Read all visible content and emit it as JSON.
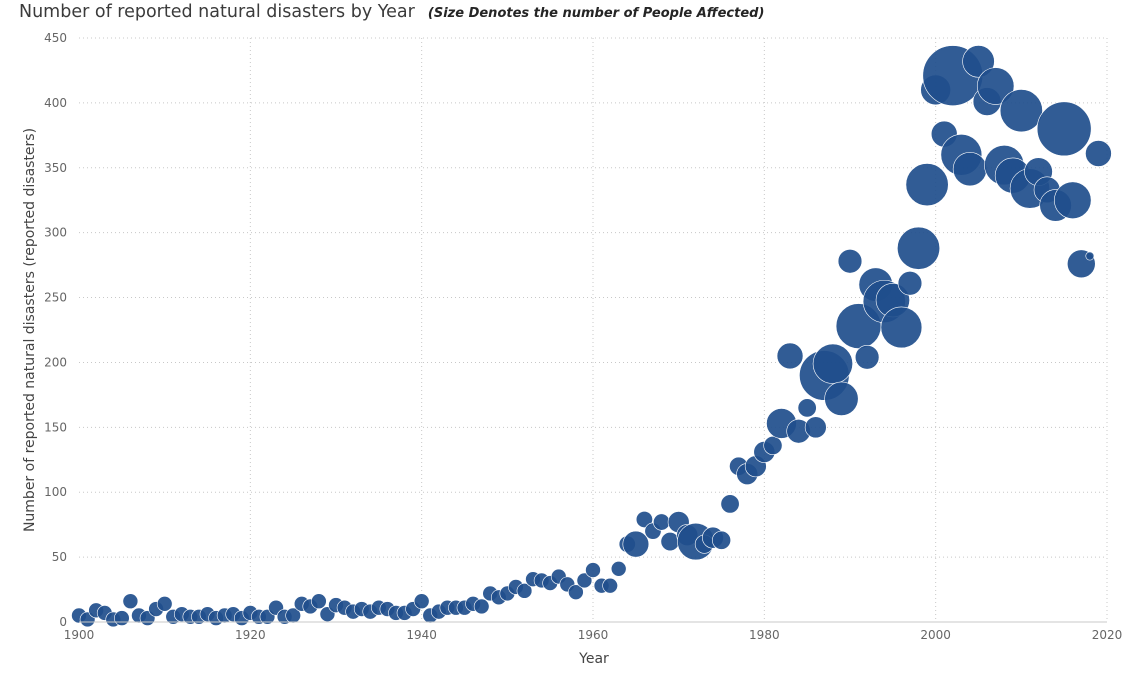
{
  "chart_data": {
    "type": "scatter",
    "title": "Number of reported natural disasters by Year",
    "subtitle": "(Size Denotes the number of People Affected)",
    "xlabel": "Year",
    "ylabel": "Number of reported natural disasters (reported disasters)",
    "xlim": [
      1900,
      2020
    ],
    "ylim": [
      0,
      450
    ],
    "x_ticks": [
      "1900",
      "1920",
      "1940",
      "1960",
      "1980",
      "2000",
      "2020"
    ],
    "y_ticks": [
      "0",
      "50",
      "100",
      "150",
      "200",
      "250",
      "300",
      "350",
      "400",
      "450"
    ],
    "grid": true,
    "marker_color": "#1F4E8C",
    "size_encodes": "number of people affected (relative bubble size)",
    "points": [
      {
        "x": 1900,
        "y": 5,
        "size": 1
      },
      {
        "x": 1901,
        "y": 2,
        "size": 1
      },
      {
        "x": 1902,
        "y": 9,
        "size": 1
      },
      {
        "x": 1903,
        "y": 7,
        "size": 1
      },
      {
        "x": 1904,
        "y": 2,
        "size": 1
      },
      {
        "x": 1905,
        "y": 3,
        "size": 1
      },
      {
        "x": 1906,
        "y": 16,
        "size": 1
      },
      {
        "x": 1907,
        "y": 5,
        "size": 1
      },
      {
        "x": 1908,
        "y": 3,
        "size": 1
      },
      {
        "x": 1909,
        "y": 10,
        "size": 1
      },
      {
        "x": 1910,
        "y": 14,
        "size": 1
      },
      {
        "x": 1911,
        "y": 4,
        "size": 1
      },
      {
        "x": 1912,
        "y": 6,
        "size": 1
      },
      {
        "x": 1913,
        "y": 4,
        "size": 1
      },
      {
        "x": 1914,
        "y": 4,
        "size": 1
      },
      {
        "x": 1915,
        "y": 6,
        "size": 1
      },
      {
        "x": 1916,
        "y": 3,
        "size": 1
      },
      {
        "x": 1917,
        "y": 5,
        "size": 1
      },
      {
        "x": 1918,
        "y": 6,
        "size": 1
      },
      {
        "x": 1919,
        "y": 3,
        "size": 1
      },
      {
        "x": 1920,
        "y": 7,
        "size": 1
      },
      {
        "x": 1921,
        "y": 4,
        "size": 1
      },
      {
        "x": 1922,
        "y": 4,
        "size": 1
      },
      {
        "x": 1923,
        "y": 11,
        "size": 1
      },
      {
        "x": 1924,
        "y": 4,
        "size": 1
      },
      {
        "x": 1925,
        "y": 5,
        "size": 1
      },
      {
        "x": 1926,
        "y": 14,
        "size": 1
      },
      {
        "x": 1927,
        "y": 12,
        "size": 1
      },
      {
        "x": 1928,
        "y": 16,
        "size": 1
      },
      {
        "x": 1929,
        "y": 6,
        "size": 1
      },
      {
        "x": 1930,
        "y": 13,
        "size": 1
      },
      {
        "x": 1931,
        "y": 11,
        "size": 1
      },
      {
        "x": 1932,
        "y": 8,
        "size": 1
      },
      {
        "x": 1933,
        "y": 10,
        "size": 1
      },
      {
        "x": 1934,
        "y": 8,
        "size": 1
      },
      {
        "x": 1935,
        "y": 11,
        "size": 1
      },
      {
        "x": 1936,
        "y": 10,
        "size": 1
      },
      {
        "x": 1937,
        "y": 7,
        "size": 1
      },
      {
        "x": 1938,
        "y": 7,
        "size": 1
      },
      {
        "x": 1939,
        "y": 10,
        "size": 1
      },
      {
        "x": 1940,
        "y": 16,
        "size": 1
      },
      {
        "x": 1941,
        "y": 5,
        "size": 1
      },
      {
        "x": 1942,
        "y": 8,
        "size": 1
      },
      {
        "x": 1943,
        "y": 11,
        "size": 1
      },
      {
        "x": 1944,
        "y": 11,
        "size": 1
      },
      {
        "x": 1945,
        "y": 11,
        "size": 1
      },
      {
        "x": 1946,
        "y": 14,
        "size": 1
      },
      {
        "x": 1947,
        "y": 12,
        "size": 1
      },
      {
        "x": 1948,
        "y": 22,
        "size": 1
      },
      {
        "x": 1949,
        "y": 19,
        "size": 1
      },
      {
        "x": 1950,
        "y": 22,
        "size": 1
      },
      {
        "x": 1951,
        "y": 27,
        "size": 1
      },
      {
        "x": 1952,
        "y": 24,
        "size": 1
      },
      {
        "x": 1953,
        "y": 33,
        "size": 1
      },
      {
        "x": 1954,
        "y": 32,
        "size": 1
      },
      {
        "x": 1955,
        "y": 30,
        "size": 1
      },
      {
        "x": 1956,
        "y": 35,
        "size": 1
      },
      {
        "x": 1957,
        "y": 29,
        "size": 1
      },
      {
        "x": 1958,
        "y": 23,
        "size": 1
      },
      {
        "x": 1959,
        "y": 32,
        "size": 1
      },
      {
        "x": 1960,
        "y": 40,
        "size": 1
      },
      {
        "x": 1961,
        "y": 28,
        "size": 1
      },
      {
        "x": 1962,
        "y": 28,
        "size": 1
      },
      {
        "x": 1963,
        "y": 41,
        "size": 1
      },
      {
        "x": 1964,
        "y": 60,
        "size": 1.2
      },
      {
        "x": 1965,
        "y": 60,
        "size": 3
      },
      {
        "x": 1966,
        "y": 79,
        "size": 1.2
      },
      {
        "x": 1967,
        "y": 70,
        "size": 1.2
      },
      {
        "x": 1968,
        "y": 77,
        "size": 1.2
      },
      {
        "x": 1969,
        "y": 62,
        "size": 1.5
      },
      {
        "x": 1970,
        "y": 77,
        "size": 2
      },
      {
        "x": 1971,
        "y": 67,
        "size": 2
      },
      {
        "x": 1972,
        "y": 62,
        "size": 6
      },
      {
        "x": 1973,
        "y": 60,
        "size": 1.5
      },
      {
        "x": 1974,
        "y": 65,
        "size": 2
      },
      {
        "x": 1975,
        "y": 63,
        "size": 1.5
      },
      {
        "x": 1976,
        "y": 91,
        "size": 1.5
      },
      {
        "x": 1977,
        "y": 120,
        "size": 1.5
      },
      {
        "x": 1978,
        "y": 114,
        "size": 2
      },
      {
        "x": 1979,
        "y": 120,
        "size": 2
      },
      {
        "x": 1980,
        "y": 131,
        "size": 2
      },
      {
        "x": 1981,
        "y": 136,
        "size": 1.5
      },
      {
        "x": 1982,
        "y": 153,
        "size": 4
      },
      {
        "x": 1983,
        "y": 205,
        "size": 3
      },
      {
        "x": 1984,
        "y": 147,
        "size": 2.5
      },
      {
        "x": 1985,
        "y": 165,
        "size": 1.5
      },
      {
        "x": 1986,
        "y": 150,
        "size": 2
      },
      {
        "x": 1987,
        "y": 190,
        "size": 11
      },
      {
        "x": 1988,
        "y": 199,
        "size": 7
      },
      {
        "x": 1989,
        "y": 172,
        "size": 5
      },
      {
        "x": 1990,
        "y": 278,
        "size": 2.5
      },
      {
        "x": 1991,
        "y": 228,
        "size": 9
      },
      {
        "x": 1992,
        "y": 204,
        "size": 2.5
      },
      {
        "x": 1993,
        "y": 260,
        "size": 5
      },
      {
        "x": 1994,
        "y": 247,
        "size": 8
      },
      {
        "x": 1995,
        "y": 248,
        "size": 5
      },
      {
        "x": 1996,
        "y": 227,
        "size": 7.5
      },
      {
        "x": 1997,
        "y": 261,
        "size": 2.5
      },
      {
        "x": 1998,
        "y": 288,
        "size": 8
      },
      {
        "x": 1999,
        "y": 337,
        "size": 8
      },
      {
        "x": 2000,
        "y": 410,
        "size": 4
      },
      {
        "x": 2001,
        "y": 376,
        "size": 3
      },
      {
        "x": 2002,
        "y": 421,
        "size": 16
      },
      {
        "x": 2003,
        "y": 360,
        "size": 7.5
      },
      {
        "x": 2004,
        "y": 349,
        "size": 5
      },
      {
        "x": 2005,
        "y": 432,
        "size": 4.5
      },
      {
        "x": 2006,
        "y": 401,
        "size": 3.5
      },
      {
        "x": 2007,
        "y": 413,
        "size": 6
      },
      {
        "x": 2008,
        "y": 352,
        "size": 7
      },
      {
        "x": 2009,
        "y": 344,
        "size": 5.5
      },
      {
        "x": 2010,
        "y": 394,
        "size": 8
      },
      {
        "x": 2011,
        "y": 334,
        "size": 7
      },
      {
        "x": 2012,
        "y": 347,
        "size": 3.5
      },
      {
        "x": 2013,
        "y": 333,
        "size": 3
      },
      {
        "x": 2014,
        "y": 321,
        "size": 4.5
      },
      {
        "x": 2015,
        "y": 380,
        "size": 13
      },
      {
        "x": 2016,
        "y": 325,
        "size": 6
      },
      {
        "x": 2017,
        "y": 276,
        "size": 3.5
      },
      {
        "x": 2018,
        "y": 282,
        "size": 0.3
      },
      {
        "x": 2019,
        "y": 361,
        "size": 3
      }
    ]
  }
}
